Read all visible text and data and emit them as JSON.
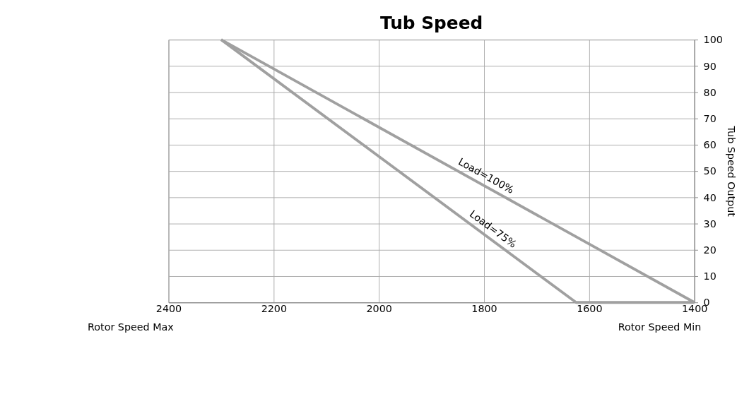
{
  "chart_data": {
    "type": "line",
    "title": "Tub Speed",
    "y2label": "Tub Speed Output",
    "series": [
      {
        "name": "Load=100%",
        "color": "#a0a0a0",
        "x": [
          2300,
          1400
        ],
        "values": [
          100,
          0
        ],
        "axis": "y2"
      },
      {
        "name": "Load=75%",
        "color": "#a0a0a0",
        "x": [
          2300,
          1625,
          1400
        ],
        "values": [
          100,
          0,
          0
        ],
        "axis": "y2"
      }
    ],
    "xlim": [
      2400,
      1400
    ],
    "xticks": [
      2400,
      2200,
      2000,
      1800,
      1600,
      1400
    ],
    "y2lim": [
      0,
      100
    ],
    "y2ticks": [
      0,
      10,
      20,
      30,
      40,
      50,
      60,
      70,
      80,
      90,
      100
    ],
    "grid": true,
    "marker": "none",
    "line_style": "solid",
    "annotations": [
      "Rotor Speed Max",
      "Rotor Speed Min"
    ]
  }
}
